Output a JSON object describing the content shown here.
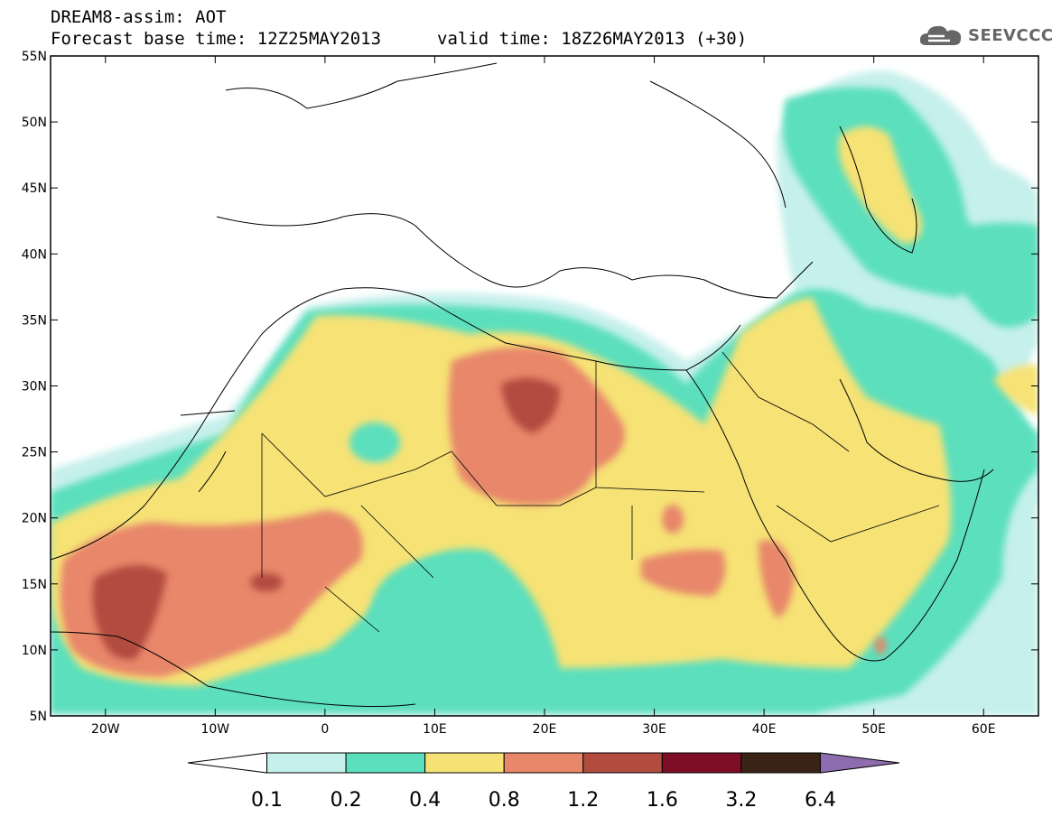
{
  "header": {
    "title": "DREAM8-assim: AOT",
    "base_time": "Forecast base time: 12Z25MAY2013",
    "valid_time": "valid time: 18Z26MAY2013 (+30)"
  },
  "logo": {
    "text": "SEEVCCC",
    "icon": "cloud-icon"
  },
  "map": {
    "lon_range": [
      -25,
      65
    ],
    "lat_range": [
      5,
      55
    ],
    "x_ticks": [
      "20W",
      "10W",
      "0",
      "10E",
      "20E",
      "30E",
      "40E",
      "50E",
      "60E"
    ],
    "y_ticks": [
      "55N",
      "50N",
      "45N",
      "40N",
      "35N",
      "30N",
      "25N",
      "20N",
      "15N",
      "10N",
      "5N"
    ]
  },
  "colorbar": {
    "levels": [
      "0.1",
      "0.2",
      "0.4",
      "0.8",
      "1.2",
      "1.6",
      "3.2",
      "6.4"
    ],
    "colors": [
      "#ffffff",
      "#c6f0eb",
      "#5bdfbd",
      "#f6e274",
      "#e8876a",
      "#b24c3f",
      "#7e0d26",
      "#3a2417",
      "#8d6cb0"
    ]
  }
}
